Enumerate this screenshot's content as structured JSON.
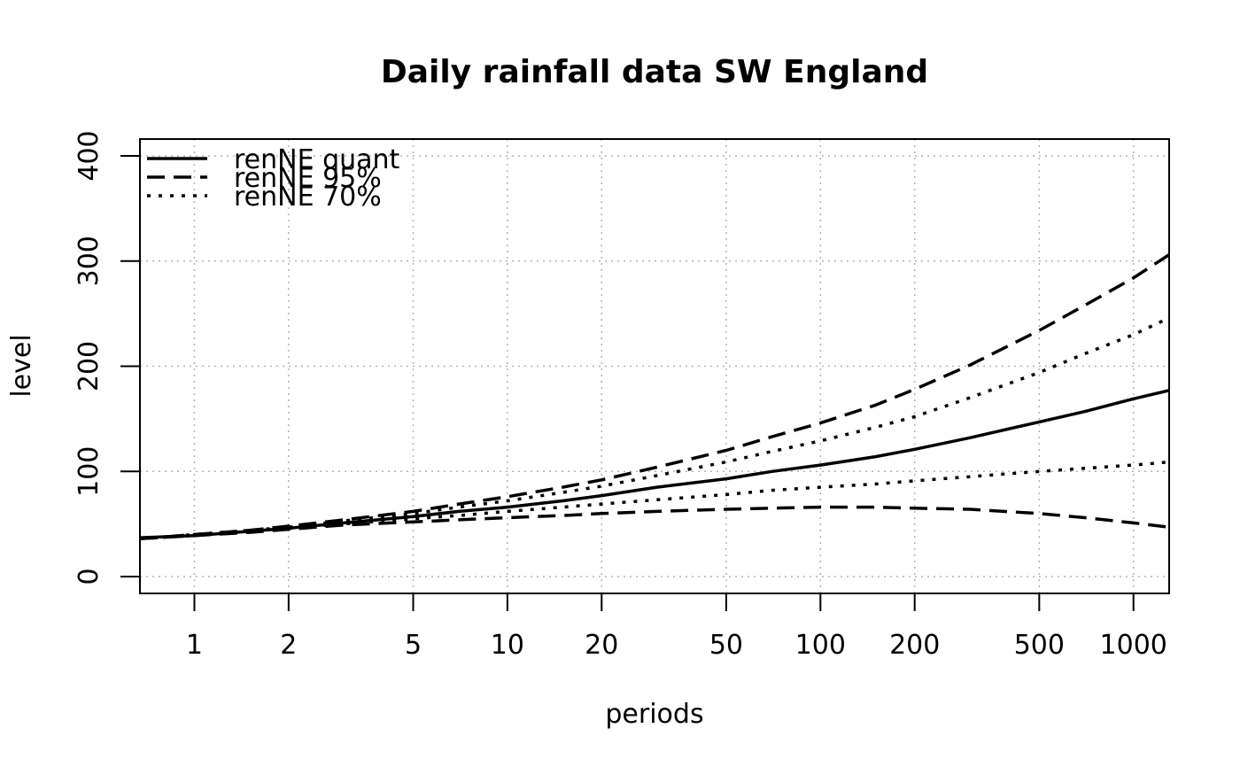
{
  "chart_data": {
    "type": "line",
    "title": "Daily rainfall data SW England",
    "xlabel": "periods",
    "ylabel": "level",
    "x_scale": "log",
    "xlim": [
      0.67,
      1300
    ],
    "ylim": [
      -16,
      416
    ],
    "grid": true,
    "legend_position": "top-left",
    "x_ticks": [
      1,
      2,
      5,
      10,
      20,
      50,
      100,
      200,
      500,
      1000
    ],
    "x_tick_labels": [
      "1",
      "2",
      "5",
      "10",
      "20",
      "50",
      "100",
      "200",
      "500",
      "1000"
    ],
    "y_ticks": [
      0,
      100,
      200,
      300,
      400
    ],
    "y_tick_labels": [
      "0",
      "100",
      "200",
      "300",
      "400"
    ],
    "x": [
      0.67,
      1,
      1.5,
      2,
      3,
      5,
      7,
      10,
      15,
      20,
      30,
      50,
      70,
      100,
      150,
      200,
      300,
      500,
      700,
      1000,
      1300
    ],
    "series": [
      {
        "name": "renNE quant",
        "style": "solid",
        "values": [
          37,
          39,
          43,
          46,
          51,
          57,
          62,
          66,
          72,
          77,
          85,
          93,
          100,
          106,
          114,
          121,
          132,
          147,
          157,
          169,
          177
        ]
      },
      {
        "name": "renNE 95%",
        "style": "dashed",
        "group": "upper",
        "values": [
          36,
          40,
          44,
          48,
          54,
          62,
          69,
          76,
          85,
          92,
          104,
          120,
          133,
          146,
          163,
          178,
          201,
          234,
          258,
          284,
          306
        ]
      },
      {
        "name": "",
        "style": "dashed",
        "group": "lower",
        "values": [
          36,
          39,
          42,
          45,
          49,
          52,
          54,
          56,
          58,
          60,
          62,
          64,
          65,
          66,
          66,
          65,
          64,
          60,
          56,
          51,
          47
        ]
      },
      {
        "name": "renNE 70%",
        "style": "dotted",
        "group": "upper",
        "values": [
          36,
          40,
          44,
          47,
          53,
          60,
          66,
          72,
          80,
          86,
          96,
          109,
          119,
          129,
          142,
          152,
          170,
          194,
          212,
          230,
          246
        ]
      },
      {
        "name": "",
        "style": "dotted",
        "group": "lower",
        "values": [
          36,
          39,
          43,
          46,
          50,
          55,
          58,
          62,
          66,
          69,
          73,
          78,
          82,
          85,
          88,
          91,
          95,
          100,
          103,
          106,
          109
        ]
      }
    ],
    "legend": [
      {
        "label": "renNE quant",
        "style": "solid"
      },
      {
        "label": "renNE 95%",
        "style": "dashed"
      },
      {
        "label": "renNE 70%",
        "style": "dotted"
      }
    ]
  }
}
